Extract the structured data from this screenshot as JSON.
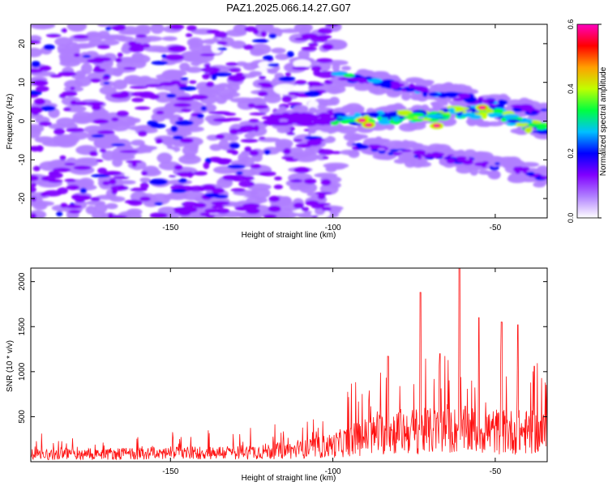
{
  "title": "PAZ1.2025.066.14.27.G07",
  "chart_data": [
    {
      "type": "heatmap",
      "xlabel": "Height of straight line (km)",
      "ylabel": "Frequency (Hz)",
      "xlim": [
        -193,
        -34
      ],
      "ylim": [
        -25,
        25
      ],
      "xticks": [
        -150,
        -100,
        -50
      ],
      "yticks": [
        -20,
        -10,
        0,
        10,
        20
      ],
      "colorbar": {
        "label": "Normalized spectral amplitude",
        "range": [
          0.0,
          0.6
        ],
        "ticks": [
          "0.0",
          "0.2",
          "0.4",
          "0.6"
        ],
        "colors": [
          "#ffffff",
          "#b080ff",
          "#8000ff",
          "#0000ff",
          "#00c0ff",
          "#00ff40",
          "#c0ff00",
          "#ffa000",
          "#ff0000",
          "#ff00c0"
        ]
      },
      "features": {
        "noise_region_x": [
          -193,
          -98
        ],
        "main_ridge": [
          [
            -120,
            0.5
          ],
          [
            -100,
            0.5
          ],
          [
            -80,
            1.0
          ],
          [
            -60,
            2.5
          ],
          [
            -50,
            2.0
          ],
          [
            -40,
            -1.0
          ],
          [
            -34,
            -2.0
          ]
        ],
        "upper_branch": [
          [
            -100,
            12
          ],
          [
            -80,
            9
          ],
          [
            -60,
            6
          ],
          [
            -40,
            3
          ],
          [
            -34,
            2
          ]
        ],
        "lower_branch": [
          [
            -95,
            -6
          ],
          [
            -80,
            -8
          ],
          [
            -60,
            -10
          ],
          [
            -40,
            -13
          ],
          [
            -34,
            -15
          ]
        ],
        "peak_points": [
          [
            -91,
            0.2
          ],
          [
            -54,
            3.5
          ],
          [
            -68,
            -1.2
          ],
          [
            -89,
            -1.0
          ]
        ]
      }
    },
    {
      "type": "line",
      "xlabel": "Height of straight line (km)",
      "ylabel": "SNR (10 * v/v)",
      "xlim": [
        -193,
        -34
      ],
      "ylim": [
        0,
        2150
      ],
      "xticks": [
        -150,
        -100,
        -50
      ],
      "yticks": [
        500,
        1000,
        1500,
        2000
      ],
      "color": "#ff0000",
      "envelope": [
        [
          -193,
          130
        ],
        [
          -160,
          140
        ],
        [
          -130,
          160
        ],
        [
          -110,
          200
        ],
        [
          -100,
          280
        ],
        [
          -90,
          430
        ],
        [
          -80,
          520
        ],
        [
          -70,
          520
        ],
        [
          -60,
          540
        ],
        [
          -50,
          520
        ],
        [
          -40,
          500
        ],
        [
          -34,
          480
        ]
      ],
      "spikes": [
        [
          -73,
          1880
        ],
        [
          -61,
          2150
        ],
        [
          -55,
          1600
        ],
        [
          -48,
          1550
        ],
        [
          -43,
          1520
        ],
        [
          -83,
          1170
        ],
        [
          -67,
          1200
        ],
        [
          -38,
          1060
        ]
      ]
    }
  ]
}
